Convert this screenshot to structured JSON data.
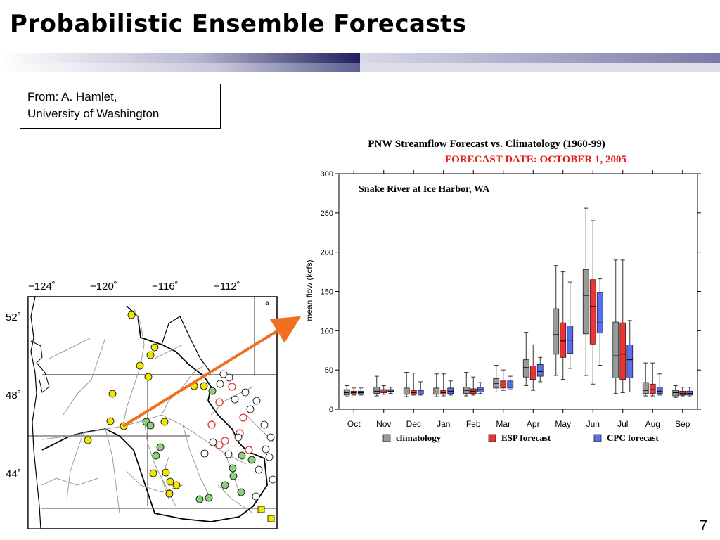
{
  "slide": {
    "title": "Probabilistic Ensemble Forecasts",
    "credit_line1": "From: A. Hamlet,",
    "credit_line2": "University of Washington",
    "page_number": "7",
    "title_bar_colors": [
      "#1f1f5f",
      "#7a7aa8",
      "#d6d6e6"
    ]
  },
  "map": {
    "lon_labels": [
      "−124˚",
      "−120˚",
      "−116˚",
      "−112˚"
    ],
    "lat_labels": [
      "52˚",
      "48˚",
      "44˚"
    ],
    "marker_colors": {
      "yellow": "#f2e600",
      "green": "#8ccf7a",
      "red": "#e03030",
      "white": "#ffffff"
    }
  },
  "chart_data": {
    "type": "box",
    "title": "PNW Streamflow Forecast vs. Climatology (1960-99)",
    "subtitle": "FORECAST DATE:  OCTOBER 1, 2005",
    "annotation": "Snake River at Ice Harbor, WA",
    "ylabel": "mean flow (kcfs)",
    "xlabel": "",
    "ylim": [
      0,
      300
    ],
    "yticks": [
      "0",
      "50",
      "100",
      "150",
      "200",
      "250",
      "300"
    ],
    "grid": false,
    "legend_position": "bottom",
    "categories": [
      "Oct",
      "Nov",
      "Dec",
      "Jan",
      "Feb",
      "Mar",
      "Apr",
      "May",
      "Jun",
      "Jul",
      "Aug",
      "Sep"
    ],
    "series": [
      {
        "name": "climatology",
        "color": "#999999",
        "boxes": [
          {
            "min": 16,
            "q1": 18,
            "median": 21,
            "q3": 25,
            "max": 30
          },
          {
            "min": 17,
            "q1": 20,
            "median": 23,
            "q3": 28,
            "max": 42
          },
          {
            "min": 16,
            "q1": 19,
            "median": 22,
            "q3": 27,
            "max": 47
          },
          {
            "min": 16,
            "q1": 19,
            "median": 22,
            "q3": 27,
            "max": 45
          },
          {
            "min": 17,
            "q1": 20,
            "median": 24,
            "q3": 28,
            "max": 47
          },
          {
            "min": 22,
            "q1": 27,
            "median": 33,
            "q3": 39,
            "max": 56
          },
          {
            "min": 30,
            "q1": 41,
            "median": 53,
            "q3": 63,
            "max": 98
          },
          {
            "min": 43,
            "q1": 70,
            "median": 95,
            "q3": 128,
            "max": 183
          },
          {
            "min": 43,
            "q1": 96,
            "median": 145,
            "q3": 178,
            "max": 256
          },
          {
            "min": 20,
            "q1": 40,
            "median": 68,
            "q3": 111,
            "max": 190
          },
          {
            "min": 17,
            "q1": 20,
            "median": 24,
            "q3": 34,
            "max": 59
          },
          {
            "min": 15,
            "q1": 17,
            "median": 21,
            "q3": 24,
            "max": 30
          }
        ]
      },
      {
        "name": "ESP forecast",
        "color": "#ee3333",
        "boxes": [
          {
            "min": 18,
            "q1": 19,
            "median": 21,
            "q3": 23,
            "max": 27
          },
          {
            "min": 19,
            "q1": 21,
            "median": 22,
            "q3": 25,
            "max": 30
          },
          {
            "min": 18,
            "q1": 19,
            "median": 21,
            "q3": 24,
            "max": 46
          },
          {
            "min": 17,
            "q1": 19,
            "median": 21,
            "q3": 24,
            "max": 45
          },
          {
            "min": 18,
            "q1": 20,
            "median": 23,
            "q3": 26,
            "max": 41
          },
          {
            "min": 24,
            "q1": 27,
            "median": 31,
            "q3": 36,
            "max": 50
          },
          {
            "min": 24,
            "q1": 38,
            "median": 46,
            "q3": 55,
            "max": 82
          },
          {
            "min": 38,
            "q1": 66,
            "median": 87,
            "q3": 110,
            "max": 175
          },
          {
            "min": 32,
            "q1": 83,
            "median": 131,
            "q3": 165,
            "max": 240
          },
          {
            "min": 21,
            "q1": 38,
            "median": 70,
            "q3": 110,
            "max": 190
          },
          {
            "min": 17,
            "q1": 20,
            "median": 25,
            "q3": 32,
            "max": 59
          },
          {
            "min": 17,
            "q1": 18,
            "median": 20,
            "q3": 23,
            "max": 28
          }
        ]
      },
      {
        "name": "CPC forecast",
        "color": "#5a6ef0",
        "boxes": [
          {
            "min": 18,
            "q1": 19,
            "median": 21,
            "q3": 23,
            "max": 27
          },
          {
            "min": 20,
            "q1": 22,
            "median": 23,
            "q3": 25,
            "max": 28
          },
          {
            "min": 18,
            "q1": 19,
            "median": 22,
            "q3": 24,
            "max": 35
          },
          {
            "min": 18,
            "q1": 20,
            "median": 23,
            "q3": 27,
            "max": 36
          },
          {
            "min": 20,
            "q1": 22,
            "median": 25,
            "q3": 28,
            "max": 34
          },
          {
            "min": 25,
            "q1": 27,
            "median": 31,
            "q3": 36,
            "max": 42
          },
          {
            "min": 35,
            "q1": 42,
            "median": 48,
            "q3": 57,
            "max": 66
          },
          {
            "min": 52,
            "q1": 71,
            "median": 88,
            "q3": 106,
            "max": 162
          },
          {
            "min": 56,
            "q1": 97,
            "median": 110,
            "q3": 149,
            "max": 166
          },
          {
            "min": 22,
            "q1": 40,
            "median": 63,
            "q3": 82,
            "max": 113
          },
          {
            "min": 18,
            "q1": 20,
            "median": 23,
            "q3": 28,
            "max": 45
          },
          {
            "min": 16,
            "q1": 18,
            "median": 20,
            "q3": 23,
            "max": 28
          }
        ]
      }
    ]
  }
}
